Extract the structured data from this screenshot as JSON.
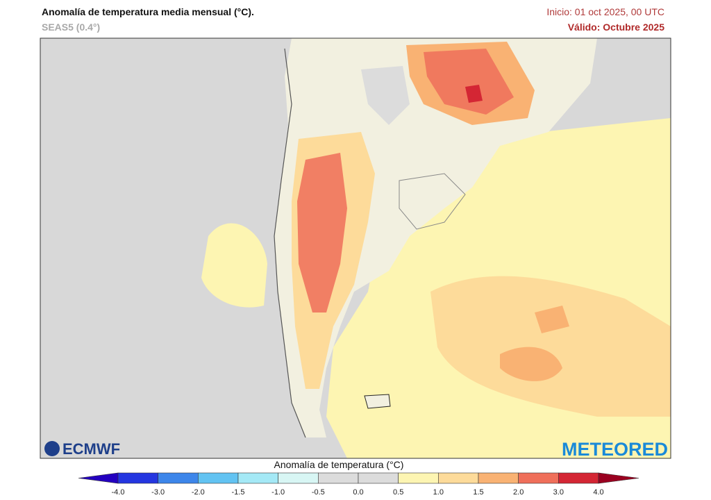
{
  "header": {
    "title": "Anomalía de temperatura media mensual (°C).",
    "subtitle": "SEAS5 (0.4°)",
    "init": "Inicio: 01 oct 2025, 00 UTC",
    "valid": "Válido: Octubre 2025"
  },
  "logos": {
    "left": "ECMWF",
    "right": "METEORED"
  },
  "colorbar": {
    "label": "Anomalía de temperatura (°C)",
    "ticks": [
      "-4.0",
      "-3.0",
      "-2.0",
      "-1.5",
      "-1.0",
      "-0.5",
      "0.0",
      "0.5",
      "1.0",
      "1.5",
      "2.0",
      "3.0",
      "4.0"
    ],
    "colors": [
      "#2400c0",
      "#2436e0",
      "#3d86ea",
      "#62c3f2",
      "#a4e9f6",
      "#d8f6f4",
      "#dcdcdc",
      "#dcdcdc",
      "#fdf5b2",
      "#fddb9a",
      "#f9b273",
      "#ef6f5a",
      "#d42634",
      "#9a0020"
    ]
  }
}
